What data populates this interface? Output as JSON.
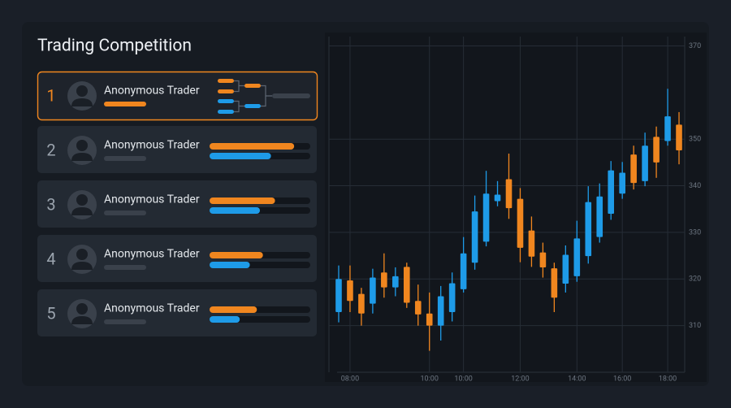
{
  "header": {
    "title": "Trading Competition"
  },
  "leaderboard": {
    "bar_colors": [
      "#f0861f",
      "#1e9be8"
    ],
    "rows": [
      {
        "rank": 1,
        "name": "Anonymous Trader"
      },
      {
        "rank": 2,
        "name": "Anonymous Trader",
        "bars": [
          84,
          61
        ]
      },
      {
        "rank": 3,
        "name": "Anonymous Trader",
        "bars": [
          65,
          50
        ]
      },
      {
        "rank": 4,
        "name": "Anonymous Trader",
        "bars": [
          53,
          40
        ]
      },
      {
        "rank": 5,
        "name": "Anonymous Trader",
        "bars": [
          47,
          30
        ]
      }
    ]
  },
  "chart_data": {
    "type": "candlestick",
    "categories": [
      null,
      "08:00",
      null,
      null,
      null,
      null,
      null,
      null,
      "10:00",
      null,
      null,
      "10:00",
      null,
      null,
      null,
      null,
      "12:00",
      null,
      null,
      null,
      null,
      "14:00",
      null,
      null,
      null,
      "16:00",
      null,
      null,
      null,
      "18:00",
      null
    ],
    "open": [
      312.9,
      319.7,
      316.8,
      314.7,
      321.4,
      318.2,
      322.6,
      315.3,
      312.6,
      310.0,
      312.9,
      317.8,
      323.5,
      328.0,
      336.7,
      341.4,
      337.2,
      330.4,
      325.7,
      322.3,
      319.0,
      320.6,
      324.9,
      329.0,
      334.0,
      338.3,
      346.7,
      341.0,
      350.5,
      349.6,
      353.1
    ],
    "high": [
      322.9,
      322.9,
      318.1,
      322.2,
      325.5,
      322.5,
      323.5,
      318.8,
      317.1,
      318.5,
      321.4,
      329.0,
      337.9,
      343.2,
      341.0,
      346.9,
      339.5,
      333.4,
      327.8,
      323.5,
      327.2,
      332.5,
      339.9,
      340.5,
      345.3,
      345.1,
      348.6,
      351.4,
      352.7,
      360.8,
      355.8
    ],
    "low": [
      310.7,
      312.9,
      310.0,
      312.6,
      316.0,
      316.3,
      313.8,
      310.0,
      304.6,
      306.8,
      310.9,
      317.1,
      322.0,
      327.0,
      335.6,
      332.9,
      323.6,
      322.6,
      320.3,
      312.9,
      317.1,
      319.4,
      323.3,
      327.8,
      332.7,
      337.2,
      339.2,
      339.9,
      341.7,
      348.6,
      344.6
    ],
    "close": [
      320.0,
      315.3,
      312.6,
      320.3,
      318.2,
      320.6,
      314.9,
      312.4,
      310.0,
      316.3,
      319.1,
      325.5,
      334.5,
      338.3,
      338.1,
      335.2,
      326.7,
      324.8,
      322.5,
      316.0,
      325.2,
      328.7,
      336.5,
      337.7,
      343.3,
      342.8,
      340.6,
      348.6,
      345.0,
      354.9,
      347.6
    ],
    "up_color": "#1e9be8",
    "down_color": "#f0861f",
    "ylim": [
      300,
      372
    ],
    "yticks": [
      310,
      320,
      330,
      340,
      350,
      370
    ],
    "grid": true
  }
}
